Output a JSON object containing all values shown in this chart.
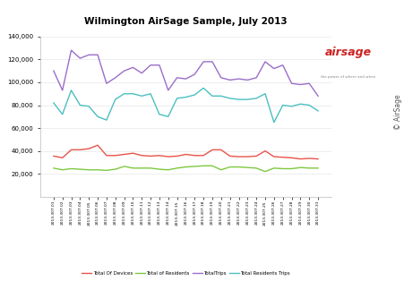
{
  "title": "Wilmington AirSage Sample, July 2013",
  "x_labels": [
    "2013.307.01",
    "2013.307.02",
    "2013.307.03",
    "2013.307.04",
    "2013.307.05",
    "2013.307.06",
    "2013.307.07",
    "2013.307.08",
    "2013.307.09",
    "2013.307.10",
    "2013.307.11",
    "2013.307.12",
    "2013.307.13",
    "2013.307.14",
    "2013.307.15",
    "2013.307.16",
    "2013.307.17",
    "2013.307.18",
    "2013.307.19",
    "2013.307.20",
    "2013.307.21",
    "2013.307.22",
    "2013.307.23",
    "2013.307.24",
    "2013.307.25",
    "2013.307.26",
    "2013.307.27",
    "2013.307.28",
    "2013.307.29",
    "2013.307.30",
    "2013.307.31"
  ],
  "total_devices": [
    35500,
    34000,
    41000,
    41000,
    42000,
    45000,
    36000,
    36000,
    37000,
    38000,
    36000,
    35500,
    36000,
    35000,
    35500,
    37000,
    36000,
    36000,
    41000,
    41000,
    35500,
    35000,
    35000,
    35500,
    40000,
    35000,
    34500,
    34000,
    33000,
    33500,
    33000
  ],
  "total_residents": [
    25000,
    23500,
    24500,
    24000,
    23500,
    23500,
    23000,
    24000,
    26500,
    25000,
    25000,
    25000,
    24000,
    23500,
    25000,
    26000,
    26500,
    27000,
    27000,
    23500,
    26000,
    26000,
    25500,
    25000,
    22000,
    25000,
    24500,
    24500,
    25500,
    25000,
    25000
  ],
  "total_trips": [
    110000,
    93000,
    128000,
    121000,
    124000,
    124000,
    99000,
    104000,
    110000,
    113000,
    108000,
    115000,
    115000,
    93000,
    104000,
    103000,
    107000,
    118000,
    118000,
    104000,
    102000,
    103000,
    102000,
    104000,
    118000,
    112000,
    115000,
    99000,
    98000,
    99000,
    88000
  ],
  "total_resident_trips": [
    82000,
    72000,
    93000,
    80000,
    79000,
    70000,
    67000,
    85000,
    90000,
    90000,
    88000,
    90000,
    72000,
    70000,
    86000,
    87000,
    89000,
    95000,
    88000,
    88000,
    86000,
    85000,
    85000,
    86000,
    90000,
    65000,
    80000,
    79000,
    81000,
    80000,
    75000
  ],
  "colors": {
    "total_devices": "#E8534A",
    "total_residents": "#7DC940",
    "total_trips": "#9B6EC8",
    "total_resident_trips": "#4BBFBF"
  },
  "legend_labels": {
    "total_devices": "Total Of Devices",
    "total_residents": "Total of Residents",
    "total_trips": "TotalTrips",
    "total_resident_trips": "Total Residents Trips"
  },
  "ylim": [
    0,
    140000
  ],
  "yticks": [
    20000,
    40000,
    60000,
    80000,
    100000,
    120000,
    140000
  ],
  "background_color": "#FFFFFF",
  "grid_color": "#E8E8E8",
  "airsage_text": "© AirSage"
}
